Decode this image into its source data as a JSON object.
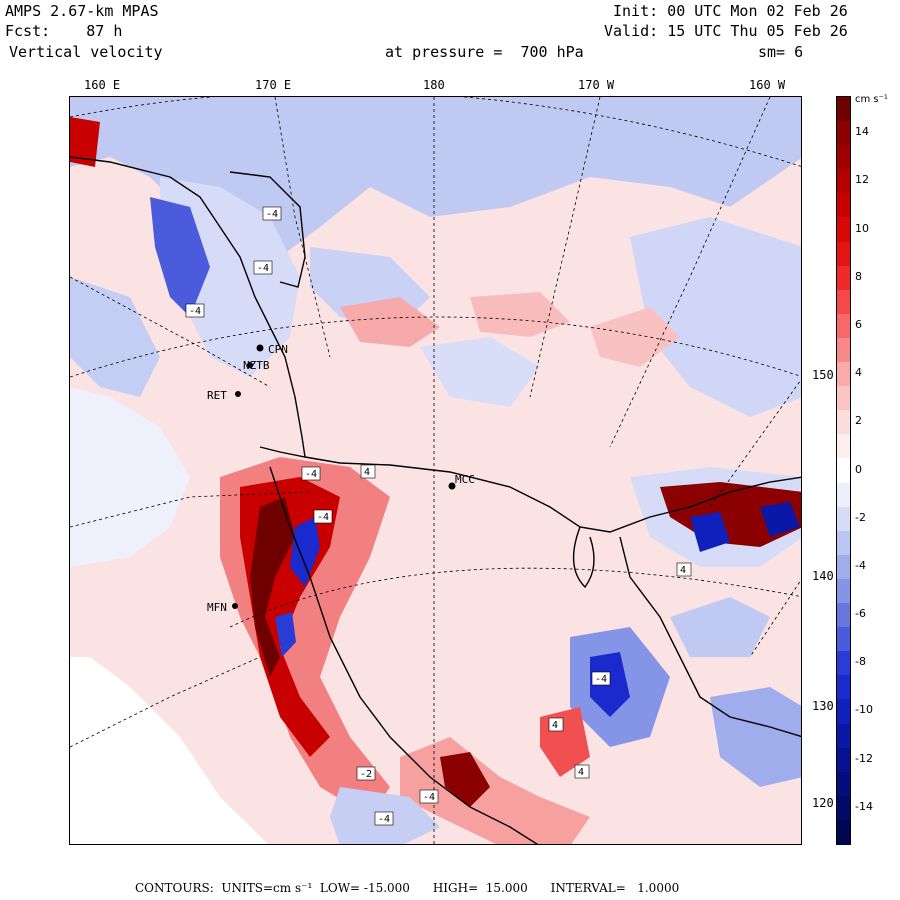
{
  "header": {
    "model": "AMPS 2.67-km MPAS",
    "forecast": "Fcst:    87 h",
    "field": "Vertical velocity",
    "init": "Init: 00 UTC Mon 02 Feb 26",
    "valid": "Valid: 15 UTC Thu 05 Feb 26",
    "pressure": "at pressure =  700 hPa",
    "smoothing": "sm= 6"
  },
  "longitude_labels": [
    "160 E",
    "170 E",
    "180",
    "170 W",
    "160 W"
  ],
  "latitude_labels": [
    "150 W",
    "140 W",
    "130 W",
    "120 W"
  ],
  "stations": [
    "CPN",
    "NZTB",
    "RET",
    "MCC",
    "MFN"
  ],
  "contour_marks": [
    "-4",
    "-4",
    "-4",
    "4",
    "-4",
    "-4",
    "4",
    "4",
    "-4",
    "4",
    "-4",
    "-4",
    "-2"
  ],
  "colorbar": {
    "units_label": "cm s⁻¹",
    "ticks": [
      "14",
      "12",
      "10",
      "8",
      "6",
      "4",
      "2",
      "0",
      "-2",
      "-4",
      "-6",
      "-8",
      "-10",
      "-12",
      "-14"
    ],
    "levels": [
      {
        "value": 15,
        "color": "#6e0000"
      },
      {
        "value": 14,
        "color": "#8b0000"
      },
      {
        "value": 13,
        "color": "#a00000"
      },
      {
        "value": 12,
        "color": "#b40000"
      },
      {
        "value": 11,
        "color": "#c80000"
      },
      {
        "value": 10,
        "color": "#d80808"
      },
      {
        "value": 9,
        "color": "#e51414"
      },
      {
        "value": 8,
        "color": "#f02a2a"
      },
      {
        "value": 7,
        "color": "#f54848"
      },
      {
        "value": 6,
        "color": "#f86868"
      },
      {
        "value": 5,
        "color": "#f98989"
      },
      {
        "value": 4,
        "color": "#fbaaaa"
      },
      {
        "value": 3,
        "color": "#fcc5c5"
      },
      {
        "value": 2,
        "color": "#fddcdc"
      },
      {
        "value": 1,
        "color": "#feeeee"
      },
      {
        "value": 0,
        "color": "#ffffff"
      },
      {
        "value": -1,
        "color": "#eceffc"
      },
      {
        "value": -2,
        "color": "#d6dcf8"
      },
      {
        "value": -3,
        "color": "#bcc6f2"
      },
      {
        "value": -4,
        "color": "#a0adec"
      },
      {
        "value": -5,
        "color": "#8494e6"
      },
      {
        "value": -6,
        "color": "#6677e0"
      },
      {
        "value": -7,
        "color": "#4a5bdc"
      },
      {
        "value": -8,
        "color": "#2a3cd6"
      },
      {
        "value": -9,
        "color": "#1a2acc"
      },
      {
        "value": -10,
        "color": "#1020bb"
      },
      {
        "value": -11,
        "color": "#0a18a8"
      },
      {
        "value": -12,
        "color": "#061290"
      },
      {
        "value": -13,
        "color": "#040e7a"
      },
      {
        "value": -14,
        "color": "#020a66"
      },
      {
        "value": -15,
        "color": "#010650"
      }
    ]
  },
  "footer": {
    "text": "CONTOURS:  UNITS=cm s⁻¹  LOW= -15.000      HIGH=  15.000      INTERVAL=   1.0000"
  }
}
